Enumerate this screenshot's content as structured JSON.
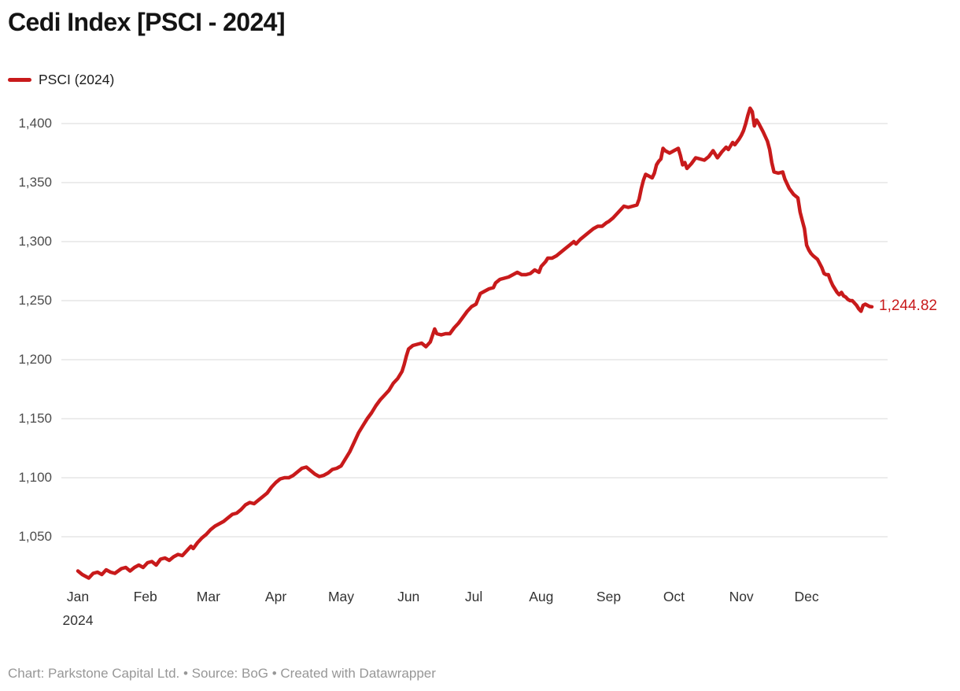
{
  "header": {
    "title": "Cedi Index [PSCI - 2024]"
  },
  "legend": {
    "items": [
      {
        "label": "PSCI (2024)",
        "color": "#c81a1b"
      }
    ]
  },
  "footer": {
    "text": "Chart: Parkstone Capital Ltd. • Source: BoG • Created with Datawrapper"
  },
  "colors": {
    "line": "#c81a1b",
    "grid": "#dadada",
    "axis_text": "#4c4c4c",
    "month_text": "#333333"
  },
  "chart_data": {
    "type": "line",
    "title": "Cedi Index [PSCI - 2024]",
    "legend_position": "top-left",
    "grid": true,
    "end_label": "1,244.82",
    "x_axis": {
      "tick_labels": [
        "Jan",
        "Feb",
        "Mar",
        "Apr",
        "May",
        "Jun",
        "Jul",
        "Aug",
        "Sep",
        "Oct",
        "Nov",
        "Dec"
      ],
      "tick_days": [
        1,
        32,
        61,
        92,
        122,
        153,
        183,
        214,
        245,
        275,
        306,
        336
      ],
      "sub_label": "2024",
      "domain_days": [
        1,
        366
      ]
    },
    "y_axis": {
      "ticks": [
        1050,
        1100,
        1150,
        1200,
        1250,
        1300,
        1350,
        1400
      ],
      "range": [
        1013,
        1415
      ]
    },
    "series": [
      {
        "name": "PSCI (2024)",
        "color": "#c81a1b",
        "points": [
          [
            1,
            1021
          ],
          [
            3,
            1018
          ],
          [
            6,
            1015
          ],
          [
            8,
            1019
          ],
          [
            10,
            1020
          ],
          [
            12,
            1018
          ],
          [
            14,
            1022
          ],
          [
            16,
            1020
          ],
          [
            18,
            1019
          ],
          [
            21,
            1023
          ],
          [
            23,
            1024
          ],
          [
            25,
            1021
          ],
          [
            27,
            1024
          ],
          [
            29,
            1026
          ],
          [
            31,
            1024
          ],
          [
            33,
            1028
          ],
          [
            35,
            1029
          ],
          [
            37,
            1026
          ],
          [
            39,
            1031
          ],
          [
            41,
            1032
          ],
          [
            43,
            1030
          ],
          [
            45,
            1033
          ],
          [
            47,
            1035
          ],
          [
            49,
            1034
          ],
          [
            51,
            1038
          ],
          [
            53,
            1042
          ],
          [
            54,
            1040
          ],
          [
            56,
            1045
          ],
          [
            58,
            1049
          ],
          [
            60,
            1052
          ],
          [
            62,
            1056
          ],
          [
            64,
            1059
          ],
          [
            66,
            1061
          ],
          [
            68,
            1063
          ],
          [
            70,
            1066
          ],
          [
            72,
            1069
          ],
          [
            74,
            1070
          ],
          [
            76,
            1073
          ],
          [
            78,
            1077
          ],
          [
            80,
            1079
          ],
          [
            82,
            1078
          ],
          [
            84,
            1081
          ],
          [
            86,
            1084
          ],
          [
            88,
            1087
          ],
          [
            90,
            1092
          ],
          [
            92,
            1096
          ],
          [
            94,
            1099
          ],
          [
            96,
            1100
          ],
          [
            98,
            1100
          ],
          [
            100,
            1102
          ],
          [
            102,
            1105
          ],
          [
            104,
            1108
          ],
          [
            106,
            1109
          ],
          [
            108,
            1106
          ],
          [
            110,
            1103
          ],
          [
            112,
            1101
          ],
          [
            114,
            1102
          ],
          [
            116,
            1104
          ],
          [
            118,
            1107
          ],
          [
            120,
            1108
          ],
          [
            122,
            1110
          ],
          [
            124,
            1116
          ],
          [
            126,
            1122
          ],
          [
            128,
            1130
          ],
          [
            130,
            1138
          ],
          [
            132,
            1144
          ],
          [
            134,
            1150
          ],
          [
            136,
            1155
          ],
          [
            138,
            1161
          ],
          [
            140,
            1166
          ],
          [
            142,
            1170
          ],
          [
            144,
            1174
          ],
          [
            146,
            1180
          ],
          [
            148,
            1184
          ],
          [
            150,
            1190
          ],
          [
            151,
            1196
          ],
          [
            152,
            1203
          ],
          [
            153,
            1209
          ],
          [
            155,
            1212
          ],
          [
            157,
            1213
          ],
          [
            159,
            1214
          ],
          [
            161,
            1211
          ],
          [
            163,
            1215
          ],
          [
            165,
            1226
          ],
          [
            166,
            1222
          ],
          [
            168,
            1221
          ],
          [
            170,
            1222
          ],
          [
            172,
            1222
          ],
          [
            174,
            1227
          ],
          [
            176,
            1231
          ],
          [
            178,
            1236
          ],
          [
            180,
            1241
          ],
          [
            182,
            1245
          ],
          [
            184,
            1247
          ],
          [
            186,
            1256
          ],
          [
            188,
            1258
          ],
          [
            190,
            1260
          ],
          [
            192,
            1261
          ],
          [
            193,
            1265
          ],
          [
            195,
            1268
          ],
          [
            197,
            1269
          ],
          [
            199,
            1270
          ],
          [
            201,
            1272
          ],
          [
            203,
            1274
          ],
          [
            205,
            1272
          ],
          [
            207,
            1272
          ],
          [
            209,
            1273
          ],
          [
            211,
            1276
          ],
          [
            213,
            1274
          ],
          [
            214,
            1279
          ],
          [
            216,
            1283
          ],
          [
            217,
            1286
          ],
          [
            219,
            1286
          ],
          [
            221,
            1288
          ],
          [
            223,
            1291
          ],
          [
            225,
            1294
          ],
          [
            227,
            1297
          ],
          [
            229,
            1300
          ],
          [
            230,
            1298
          ],
          [
            232,
            1302
          ],
          [
            234,
            1305
          ],
          [
            236,
            1308
          ],
          [
            238,
            1311
          ],
          [
            240,
            1313
          ],
          [
            242,
            1313
          ],
          [
            244,
            1316
          ],
          [
            245,
            1317
          ],
          [
            247,
            1320
          ],
          [
            249,
            1324
          ],
          [
            251,
            1328
          ],
          [
            252,
            1330
          ],
          [
            254,
            1329
          ],
          [
            256,
            1330
          ],
          [
            258,
            1331
          ],
          [
            259,
            1336
          ],
          [
            260,
            1345
          ],
          [
            261,
            1352
          ],
          [
            262,
            1357
          ],
          [
            263,
            1356
          ],
          [
            265,
            1354
          ],
          [
            266,
            1358
          ],
          [
            267,
            1365
          ],
          [
            268,
            1368
          ],
          [
            269,
            1370
          ],
          [
            270,
            1379
          ],
          [
            271,
            1377
          ],
          [
            273,
            1375
          ],
          [
            274,
            1376
          ],
          [
            275,
            1377
          ],
          [
            277,
            1379
          ],
          [
            278,
            1373
          ],
          [
            279,
            1365
          ],
          [
            280,
            1367
          ],
          [
            281,
            1362
          ],
          [
            283,
            1366
          ],
          [
            285,
            1371
          ],
          [
            287,
            1370
          ],
          [
            289,
            1369
          ],
          [
            291,
            1372
          ],
          [
            293,
            1377
          ],
          [
            294,
            1374
          ],
          [
            295,
            1371
          ],
          [
            297,
            1376
          ],
          [
            299,
            1380
          ],
          [
            300,
            1378
          ],
          [
            302,
            1384
          ],
          [
            303,
            1382
          ],
          [
            305,
            1387
          ],
          [
            306,
            1390
          ],
          [
            307,
            1394
          ],
          [
            308,
            1400
          ],
          [
            309,
            1407
          ],
          [
            310,
            1413
          ],
          [
            311,
            1410
          ],
          [
            312,
            1398
          ],
          [
            313,
            1403
          ],
          [
            314,
            1400
          ],
          [
            316,
            1393
          ],
          [
            318,
            1385
          ],
          [
            319,
            1378
          ],
          [
            320,
            1367
          ],
          [
            321,
            1359
          ],
          [
            323,
            1358
          ],
          [
            325,
            1359
          ],
          [
            326,
            1353
          ],
          [
            328,
            1345
          ],
          [
            330,
            1340
          ],
          [
            332,
            1337
          ],
          [
            333,
            1325
          ],
          [
            334,
            1318
          ],
          [
            335,
            1311
          ],
          [
            336,
            1297
          ],
          [
            337,
            1293
          ],
          [
            338,
            1290
          ],
          [
            339,
            1288
          ],
          [
            341,
            1285
          ],
          [
            343,
            1278
          ],
          [
            344,
            1273
          ],
          [
            345,
            1272
          ],
          [
            346,
            1272
          ],
          [
            347,
            1267
          ],
          [
            348,
            1263
          ],
          [
            350,
            1257
          ],
          [
            351,
            1255
          ],
          [
            352,
            1257
          ],
          [
            353,
            1254
          ],
          [
            354,
            1253
          ],
          [
            355,
            1251
          ],
          [
            356,
            1250
          ],
          [
            357,
            1250
          ],
          [
            359,
            1246
          ],
          [
            360,
            1243
          ],
          [
            361,
            1241
          ],
          [
            362,
            1246
          ],
          [
            363,
            1247
          ],
          [
            365,
            1245
          ],
          [
            366,
            1244.82
          ]
        ]
      }
    ]
  }
}
